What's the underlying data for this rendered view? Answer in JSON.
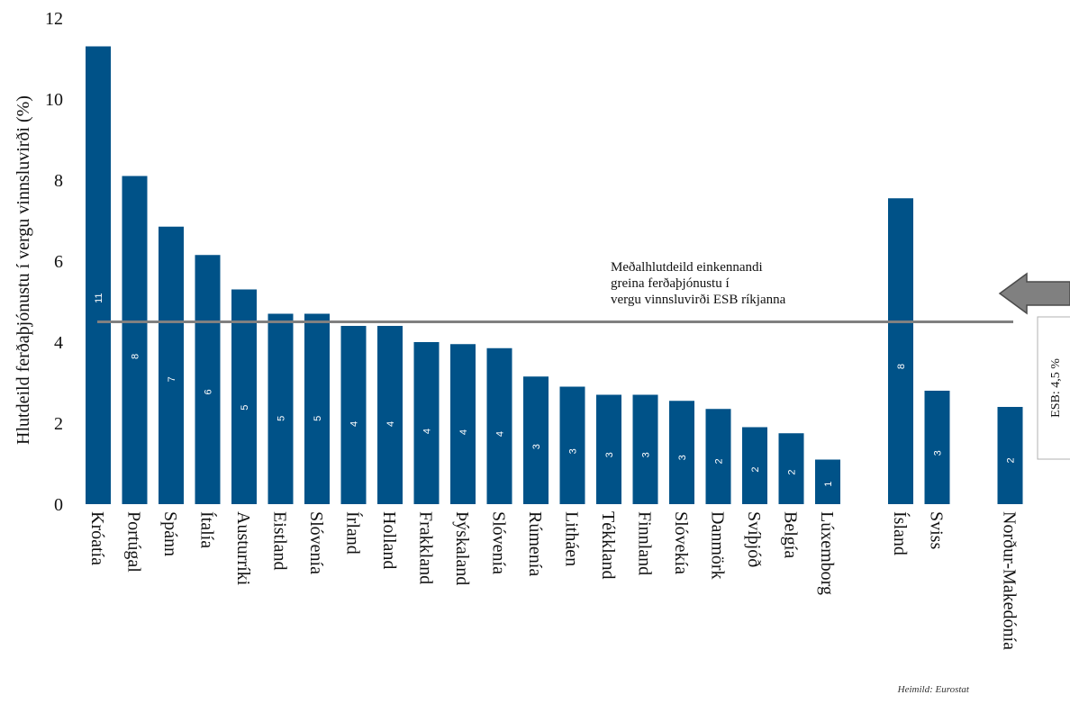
{
  "chart_data": {
    "type": "bar",
    "ylabel": "Hlutdeild ferðaþjónustu í vergu vinnsluvirði (%)",
    "ylim": [
      0,
      12
    ],
    "yticks": [
      0,
      2,
      4,
      6,
      8,
      10,
      12
    ],
    "bar_color": "#005288",
    "groups": [
      {
        "categories": [
          "Króatía",
          "Portúgal",
          "Spánn",
          "Ítalía",
          "Austurríki",
          "Eistland",
          "Slóvenía",
          "Írland",
          "Holland",
          "Frakkland",
          "Þýskaland",
          "Slóvenía",
          "Rúmenía",
          "Litháen",
          "Tékkland",
          "Finnland",
          "Slóvekía",
          "Danmörk",
          "Svíþjóð",
          "Belgía",
          "Lúxemborg"
        ],
        "values": [
          11.3,
          8.1,
          6.85,
          6.15,
          5.3,
          4.7,
          4.7,
          4.4,
          4.4,
          4.0,
          3.95,
          3.85,
          3.15,
          2.9,
          2.7,
          2.7,
          2.55,
          2.35,
          1.9,
          1.75,
          1.1
        ],
        "data_labels": [
          "11",
          "8",
          "7",
          "6",
          "5",
          "5",
          "5",
          "4",
          "4",
          "4",
          "4",
          "4",
          "3",
          "3",
          "3",
          "3",
          "3",
          "2",
          "2",
          "2",
          "1"
        ]
      },
      {
        "categories": [
          "Ísland",
          "Sviss"
        ],
        "values": [
          7.55,
          2.8
        ],
        "data_labels": [
          "8",
          "3"
        ]
      },
      {
        "categories": [
          "Norður-Makedónía"
        ],
        "values": [
          2.4
        ],
        "data_labels": [
          "2"
        ]
      }
    ],
    "reference_line": {
      "value": 4.5,
      "color": "#808080",
      "annotation": [
        "Meðalhlutdeild einkennandi",
        "greina ferðaþjónustu í",
        "vergu vinnsluvirði ESB ríkjanna"
      ],
      "callout_label": "ESB: 4,5 %",
      "arrow_color": "#808080"
    },
    "source": "Heimild: Eurostat"
  }
}
